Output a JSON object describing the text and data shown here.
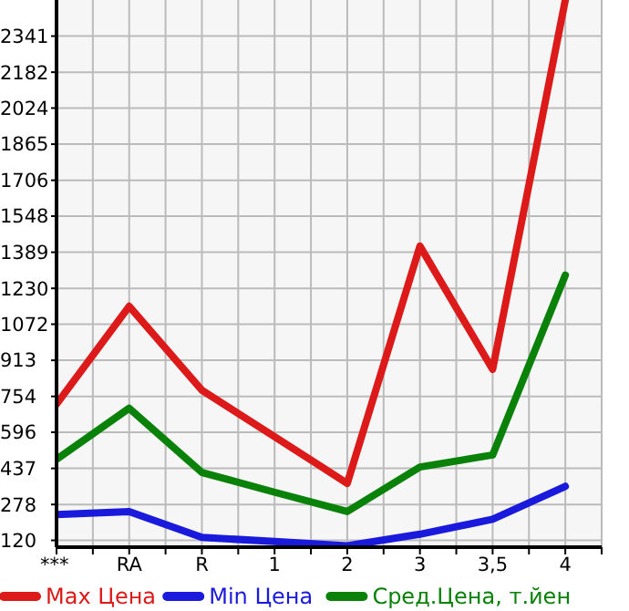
{
  "chart_data": {
    "type": "line",
    "categories": [
      "***",
      "RA",
      "R",
      "1",
      "2",
      "3",
      "3,5",
      "4"
    ],
    "series": [
      {
        "name": "Max Цена",
        "color": "#dd1a1a",
        "values": [
          720,
          1151,
          781,
          577,
          371,
          1416,
          873,
          2500
        ]
      },
      {
        "name": "Min Цена",
        "color": "#1a1add",
        "values": [
          234,
          247,
          133,
          115,
          96,
          147,
          213,
          358
        ]
      },
      {
        "name": "Сред.Цена, т.йен",
        "color": "#0a820a",
        "values": [
          477,
          702,
          419,
          332,
          247,
          443,
          496,
          1288
        ]
      }
    ],
    "ylim": [
      90,
      2500
    ],
    "yticks": [
      120,
      278,
      437,
      596,
      754,
      913,
      1072,
      1230,
      1389,
      1548,
      1706,
      1865,
      2024,
      2182,
      2341
    ],
    "grid": true,
    "legend": "bottom",
    "marker": "none",
    "line_style": "solid"
  }
}
